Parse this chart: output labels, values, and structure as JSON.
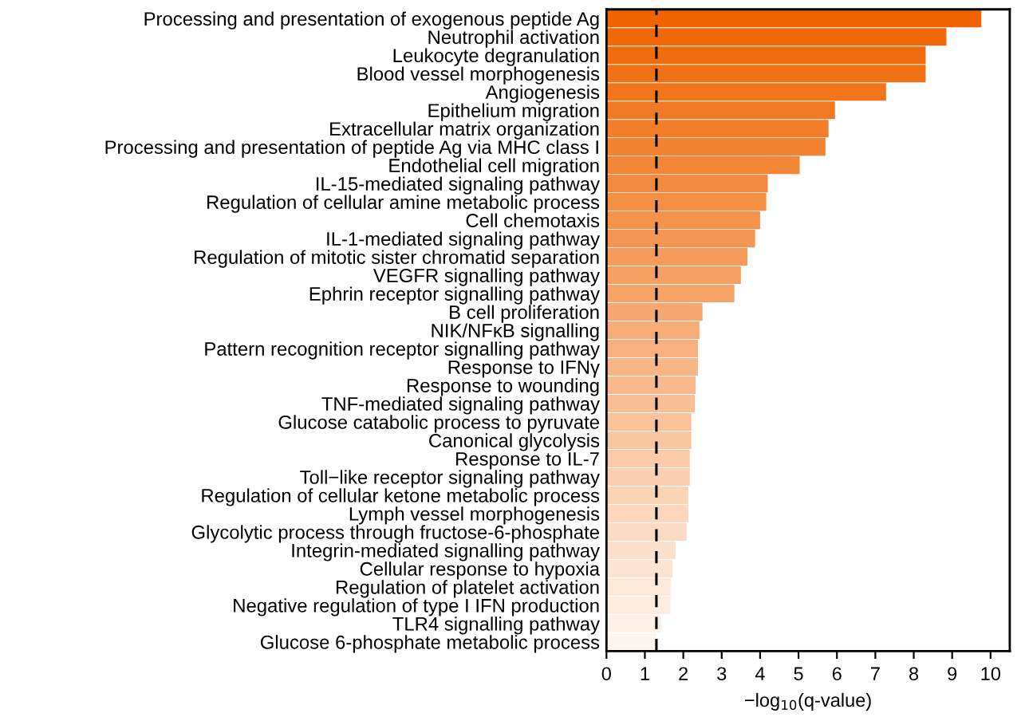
{
  "chart_data": {
    "type": "bar",
    "orientation": "horizontal",
    "xlabel": "−log$_{10}$(q-value)",
    "categories": [
      "Processing and presentation of exogenous peptide Ag",
      "Neutrophil activation",
      "Leukocyte degranulation",
      "Blood vessel morphogenesis",
      "Angiogenesis",
      "Epithelium migration",
      "Extracellular matrix organization",
      "Processing and presentation of peptide Ag via MHC class I",
      "Endothelial cell migration",
      "IL-15-mediated signaling pathway",
      "Regulation of cellular amine metabolic process",
      "Cell chemotaxis",
      "IL-1-mediated signaling pathway",
      "Regulation of mitotic sister chromatid separation",
      "VEGFR signalling pathway",
      "Ephrin receptor signalling pathway",
      "B cell proliferation",
      "NIK/NFκB signalling",
      "Pattern recognition receptor signalling pathway",
      "Response to IFNγ",
      "Response to wounding",
      "TNF-mediated signaling pathway",
      "Glucose catabolic process to pyruvate",
      "Canonical glycolysis",
      "Response to IL-7",
      "Toll−like receptor signaling pathway",
      "Regulation of cellular ketone metabolic process",
      "Lymph vessel morphogenesis",
      "Glycolytic process through fructose-6-phosphate",
      "Integrin-mediated signalling pathway",
      "Cellular response to hypoxia",
      "Regulation of platelet activation",
      "Negative regulation of type I IFN production",
      "TLR4 signalling pathway",
      "Glucose 6-phosphate metabolic process"
    ],
    "values": [
      9.76,
      8.85,
      8.31,
      8.31,
      7.28,
      5.95,
      5.78,
      5.7,
      5.03,
      4.2,
      4.16,
      4.0,
      3.87,
      3.67,
      3.5,
      3.33,
      2.5,
      2.42,
      2.38,
      2.38,
      2.32,
      2.3,
      2.21,
      2.21,
      2.17,
      2.17,
      2.13,
      2.13,
      2.09,
      1.8,
      1.72,
      1.67,
      1.67,
      1.42,
      1.3
    ],
    "colors": [
      "#f06400",
      "#f06807",
      "#f16c0e",
      "#f17115",
      "#f2751c",
      "#f27923",
      "#f37e2a",
      "#f38231",
      "#f48638",
      "#f48a3f",
      "#f48f46",
      "#f5934d",
      "#f59754",
      "#f69b5b",
      "#f6a062",
      "#f7a469",
      "#f7a870",
      "#f8ad77",
      "#f8b17e",
      "#f8b585",
      "#f9b98c",
      "#f9be93",
      "#fac29a",
      "#fac6a1",
      "#fbcaa8",
      "#fbcfaf",
      "#fbd3b6",
      "#fcd7bd",
      "#fcdbc4",
      "#fde0cb",
      "#fde4d2",
      "#fee8d9",
      "#feece0",
      "#fff1e7",
      "#fff5ee"
    ],
    "xlim": [
      0,
      10.5
    ],
    "xticks": [
      0,
      1,
      2,
      3,
      4,
      5,
      6,
      7,
      8,
      9,
      10
    ],
    "ref_lines": [
      {
        "axis": "x",
        "value": 1.3,
        "color": "#000000",
        "line_style": "dashed"
      }
    ],
    "grid": false
  }
}
